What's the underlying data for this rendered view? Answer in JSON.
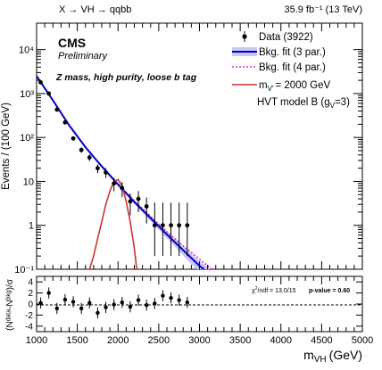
{
  "header": {
    "process": "X → VH → qqbb",
    "lumi": "35.9 fb⁻¹ (13 TeV)",
    "experiment": "CMS",
    "status": "Preliminary",
    "category": "Z mass, high purity, loose b tag"
  },
  "legend": {
    "data": "Data (3922)",
    "fit3": "Bkg. fit (3 par.)",
    "fit4": "Bkg. fit (4 par.)",
    "signal": "= 2000 GeV",
    "model": "HVT model B (g",
    "model_sub": "V",
    "model_end": "=3)"
  },
  "ratio_panel": {
    "chi2_label": "/ndf = 13.0/15",
    "pvalue_label": "p-value = 0.60"
  },
  "colors": {
    "data": "#000000",
    "fit3": "#0000cc",
    "band": "#c8c8f0",
    "fit4": "#cc33cc",
    "signal": "#cc3333"
  },
  "chart_data": [
    {
      "type": "scatter",
      "panel": "main",
      "ylabel": "Events / (100 GeV)",
      "yscale": "log",
      "ylim": [
        0.1,
        40000
      ],
      "xlim": [
        1000,
        5000
      ],
      "yticks": [
        "10⁻¹",
        "1",
        "10",
        "10²",
        "10³",
        "10⁴"
      ],
      "data_points": {
        "x": [
          1050,
          1150,
          1250,
          1350,
          1450,
          1550,
          1650,
          1750,
          1850,
          1950,
          2050,
          2150,
          2250,
          2350,
          2450,
          2550,
          2650,
          2750,
          2850
        ],
        "y": [
          1800,
          1000,
          430,
          220,
          95,
          52,
          35,
          20,
          16,
          9,
          7,
          3.5,
          4,
          2.7,
          1,
          1,
          1,
          1,
          1
        ],
        "yerr_lo": [
          45,
          33,
          22,
          15,
          10,
          7,
          6,
          4.5,
          4,
          3,
          2.6,
          1.8,
          2,
          1.6,
          0.8,
          0.8,
          0.8,
          0.8,
          0.8
        ],
        "yerr_hi": [
          45,
          33,
          22,
          15,
          10,
          7,
          6,
          4.5,
          4,
          3,
          2.6,
          1.8,
          2,
          1.6,
          2.3,
          2.3,
          2.3,
          2.3,
          2.3
        ]
      },
      "fit3": {
        "x": [
          1000,
          1200,
          1400,
          1600,
          1800,
          2000,
          2200,
          2400,
          2600,
          2800,
          3000,
          3200
        ],
        "y": [
          2500,
          700,
          190,
          60,
          22,
          8.5,
          3.4,
          1.45,
          0.62,
          0.27,
          0.12,
          0.06
        ]
      },
      "fit3_band_rel": [
        0.03,
        0.03,
        0.04,
        0.05,
        0.06,
        0.08,
        0.1,
        0.14,
        0.18,
        0.24,
        0.3,
        0.35
      ],
      "fit4": {
        "x": [
          1000,
          1200,
          1400,
          1600,
          1800,
          2000,
          2200,
          2400,
          2600,
          2800,
          3000,
          3200
        ],
        "y": [
          2500,
          700,
          190,
          60,
          22,
          8.7,
          3.6,
          1.6,
          0.72,
          0.34,
          0.17,
          0.085
        ]
      },
      "signal": {
        "x": [
          1650,
          1700,
          1750,
          1800,
          1850,
          1900,
          1950,
          2000,
          2050,
          2100,
          2150,
          2200,
          2230
        ],
        "y": [
          0.1,
          0.2,
          0.5,
          1.2,
          3,
          6,
          10,
          11,
          8,
          3.5,
          1.2,
          0.3,
          0.1
        ]
      }
    },
    {
      "type": "scatter",
      "panel": "ratio",
      "ylabel": "(Nᵈᵃᵗᵃ-Nᵇᵏᵍ)/σ",
      "ylim": [
        -5,
        5
      ],
      "yticks": [
        4,
        2,
        0,
        -2,
        -4
      ],
      "xlabel": "m",
      "xlabel_sub": "VH",
      "xlabel_unit": "(GeV)",
      "xticks": [
        1000,
        1500,
        2000,
        2500,
        3000,
        3500,
        4000,
        4500,
        5000
      ],
      "pulls": {
        "x": [
          1050,
          1150,
          1250,
          1350,
          1450,
          1550,
          1650,
          1750,
          1850,
          1950,
          2050,
          2150,
          2250,
          2350,
          2450,
          2550,
          2650,
          2750,
          2850
        ],
        "y": [
          0.2,
          2.0,
          -0.8,
          0.8,
          0.4,
          -0.8,
          0.2,
          -1.6,
          -0.6,
          -0.1,
          0.3,
          -0.5,
          0.7,
          -0.2,
          0.1,
          1.5,
          1.1,
          0.7,
          0.3
        ]
      }
    }
  ]
}
